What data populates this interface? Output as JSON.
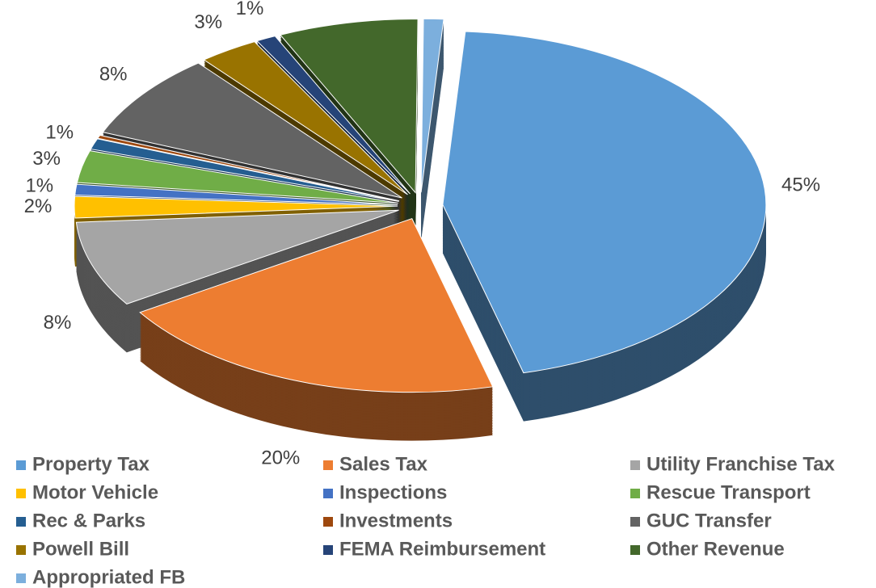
{
  "chart_data": {
    "type": "pie",
    "categories": [
      "Property Tax",
      "Sales Tax",
      "Utility Franchise Tax",
      "Motor Vehicle",
      "Inspections",
      "Rescue Transport",
      "Rec & Parks",
      "Investments",
      "GUC Transfer",
      "Powell Bill",
      "FEMA Reimbursement",
      "Other Revenue",
      "Appropriated FB"
    ],
    "values": [
      45,
      20,
      8,
      2,
      1,
      3,
      1,
      0.3,
      8,
      3,
      1,
      7,
      1
    ],
    "value_labels": [
      "45%",
      "20%",
      "8%",
      "2%",
      "1%",
      "3%",
      "1%",
      null,
      "8%",
      "3%",
      "1%",
      "7%",
      "1%"
    ],
    "colors": [
      "#5b9bd5",
      "#ed7d31",
      "#a5a5a5",
      "#ffc000",
      "#4472c4",
      "#70ad47",
      "#255e91",
      "#9e480e",
      "#636363",
      "#997300",
      "#264478",
      "#43682b",
      "#7cafdd"
    ],
    "legend": "bottom"
  }
}
